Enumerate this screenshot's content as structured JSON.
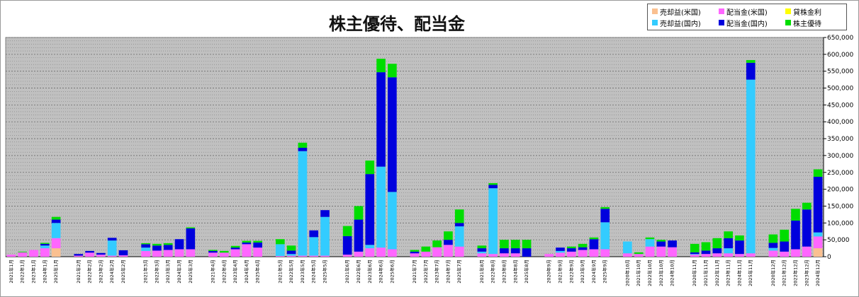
{
  "chart_data": {
    "type": "bar",
    "stacked": true,
    "title": "株主優待、配当金",
    "ylim": [
      0,
      650000
    ],
    "y_ticks": [
      0,
      50000,
      100000,
      150000,
      200000,
      250000,
      300000,
      350000,
      400000,
      450000,
      500000,
      550000,
      600000,
      650000
    ],
    "y_tick_labels": [
      "0",
      "50,000",
      "100,000",
      "150,000",
      "200,000",
      "250,000",
      "300,000",
      "350,000",
      "400,000",
      "450,000",
      "500,000",
      "550,000",
      "600,000",
      "650,000"
    ],
    "y_axis_position": "right",
    "grid": true,
    "legend_position": "top-right",
    "categories": [
      "2021年1月",
      "2022年1月",
      "2023年1月",
      "2024年1月",
      "2025年1月",
      "",
      "2021年2月",
      "2022年2月",
      "2023年2月",
      "2024年2月",
      "2025年2月",
      "",
      "2021年3月",
      "2022年3月",
      "2023年3月",
      "2024年3月",
      "2025年3月",
      "",
      "2021年4月",
      "2022年4月",
      "2023年4月",
      "2024年4月",
      "2025年4月",
      "",
      "2021年5月",
      "2022年5月",
      "2023年5月",
      "2024年5月",
      "2025年5月",
      "",
      "2021年6月",
      "2022年6月",
      "2023年6月",
      "2024年6月",
      "2025年6月",
      "",
      "2021年7月",
      "2022年7月",
      "2023年7月",
      "2024年7月",
      "2025年7月",
      "",
      "2021年8月",
      "2022年8月",
      "2023年8月",
      "2024年8月",
      "2025年8月",
      "",
      "2020年9月",
      "2021年9月",
      "2022年9月",
      "2023年9月",
      "2024年9月",
      "2025年9月",
      "",
      "2020年10月",
      "2021年10月",
      "2022年10月",
      "2023年10月",
      "2024年10月",
      "",
      "2020年11月",
      "2021年11月",
      "2022年11月",
      "2023年11月",
      "2024年11月",
      "2025年11月",
      "",
      "2020年12月",
      "2021年12月",
      "2022年12月",
      "2023年12月",
      "2024年12月"
    ],
    "series": [
      {
        "name": "売却益(米国)",
        "color": "#FAC090",
        "values": [
          0,
          0,
          0,
          0,
          25000,
          0,
          0,
          0,
          0,
          0,
          0,
          0,
          0,
          0,
          0,
          0,
          0,
          0,
          0,
          0,
          0,
          0,
          0,
          0,
          0,
          0,
          0,
          0,
          0,
          0,
          0,
          0,
          0,
          0,
          0,
          0,
          0,
          0,
          0,
          0,
          0,
          0,
          0,
          0,
          0,
          0,
          0,
          0,
          0,
          0,
          0,
          0,
          0,
          0,
          0,
          0,
          0,
          0,
          0,
          0,
          0,
          0,
          0,
          0,
          0,
          0,
          0,
          0,
          0,
          0,
          0,
          0,
          25000
        ]
      },
      {
        "name": "配当金(米国)",
        "color": "#FF66FF",
        "values": [
          6000,
          13000,
          20000,
          25000,
          30000,
          0,
          3000,
          12000,
          6000,
          3000,
          4000,
          0,
          17000,
          18000,
          20000,
          22000,
          22000,
          0,
          12000,
          12000,
          22000,
          37000,
          27000,
          0,
          2000,
          3000,
          3000,
          3000,
          3000,
          0,
          6000,
          15000,
          25000,
          27000,
          22000,
          0,
          10000,
          15000,
          28000,
          35000,
          30000,
          0,
          10000,
          8000,
          10000,
          10000,
          0,
          0,
          8000,
          12000,
          15000,
          20000,
          22000,
          22000,
          0,
          10000,
          8000,
          30000,
          30000,
          28000,
          0,
          6000,
          8000,
          10000,
          10000,
          8000,
          10000,
          0,
          18000,
          15000,
          22000,
          30000,
          35000
        ]
      },
      {
        "name": "貸株金利",
        "color": "#FFFF00",
        "values": [
          0,
          0,
          0,
          0,
          0,
          0,
          0,
          0,
          0,
          0,
          0,
          0,
          0,
          0,
          0,
          0,
          0,
          0,
          0,
          0,
          0,
          0,
          0,
          0,
          0,
          0,
          0,
          0,
          0,
          0,
          0,
          0,
          0,
          0,
          0,
          0,
          0,
          0,
          0,
          0,
          0,
          0,
          0,
          0,
          0,
          0,
          0,
          0,
          0,
          0,
          0,
          0,
          0,
          0,
          0,
          0,
          0,
          0,
          0,
          0,
          0,
          0,
          0,
          0,
          0,
          0,
          0,
          0,
          0,
          0,
          0,
          0,
          0
        ]
      },
      {
        "name": "売却益(国内)",
        "color": "#33CCFF",
        "values": [
          0,
          0,
          0,
          8000,
          45000,
          0,
          0,
          0,
          0,
          45000,
          0,
          0,
          10000,
          0,
          0,
          0,
          0,
          0,
          0,
          0,
          0,
          0,
          0,
          0,
          35000,
          5000,
          310000,
          55000,
          115000,
          0,
          0,
          0,
          10000,
          240000,
          170000,
          0,
          0,
          0,
          0,
          0,
          60000,
          0,
          5000,
          195000,
          0,
          0,
          0,
          0,
          0,
          5000,
          0,
          0,
          0,
          80000,
          0,
          35000,
          0,
          22000,
          0,
          0,
          0,
          2000,
          0,
          0,
          15000,
          0,
          515000,
          0,
          8000,
          0,
          0,
          0,
          12000
        ]
      },
      {
        "name": "配当金(国内)",
        "color": "#0000DD",
        "values": [
          0,
          0,
          0,
          5000,
          10000,
          0,
          5000,
          5000,
          5000,
          8000,
          15000,
          0,
          10000,
          15000,
          15000,
          30000,
          62000,
          0,
          5000,
          0,
          5000,
          5000,
          15000,
          0,
          0,
          10000,
          10000,
          20000,
          20000,
          0,
          55000,
          95000,
          210000,
          280000,
          340000,
          0,
          5000,
          0,
          0,
          15000,
          10000,
          0,
          10000,
          10000,
          15000,
          15000,
          25000,
          0,
          0,
          10000,
          10000,
          8000,
          30000,
          40000,
          0,
          0,
          0,
          0,
          15000,
          20000,
          0,
          5000,
          10000,
          15000,
          30000,
          40000,
          50000,
          0,
          15000,
          30000,
          85000,
          110000,
          165000
        ]
      },
      {
        "name": "株主優待",
        "color": "#00DD00",
        "values": [
          0,
          2000,
          0,
          3000,
          8000,
          0,
          0,
          0,
          0,
          0,
          0,
          0,
          3000,
          5000,
          5000,
          0,
          3000,
          0,
          3000,
          5000,
          5000,
          5000,
          5000,
          0,
          15000,
          15000,
          15000,
          0,
          0,
          0,
          30000,
          40000,
          40000,
          40000,
          40000,
          0,
          5000,
          15000,
          20000,
          25000,
          40000,
          0,
          8000,
          5000,
          25000,
          25000,
          25000,
          0,
          0,
          0,
          5000,
          10000,
          5000,
          5000,
          0,
          0,
          5000,
          5000,
          5000,
          0,
          0,
          25000,
          25000,
          30000,
          20000,
          15000,
          8000,
          0,
          25000,
          35000,
          35000,
          20000,
          22000
        ]
      }
    ]
  }
}
